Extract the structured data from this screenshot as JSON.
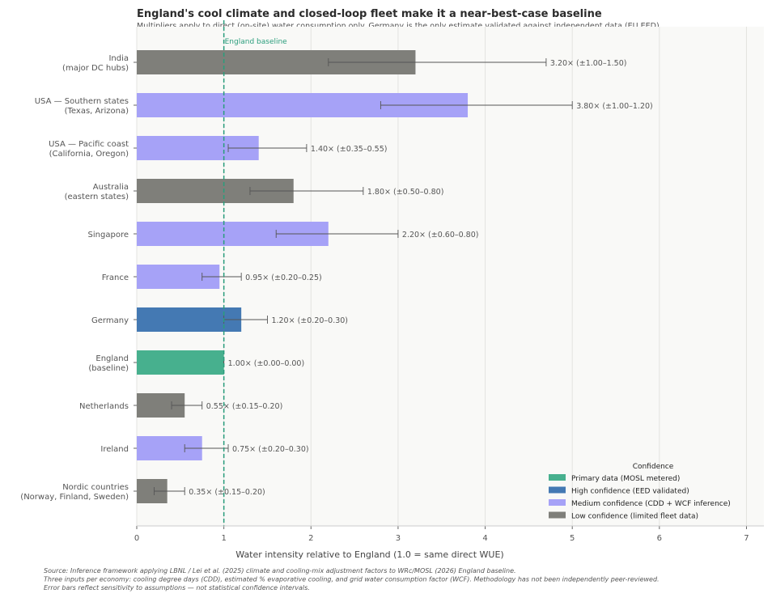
{
  "chart_data": {
    "type": "bar",
    "orientation": "horizontal",
    "title": "England's cool climate and closed-loop fleet make it a near-best-case baseline",
    "subtitle": "Multipliers apply to direct (on-site) water consumption only. Germany is the only estimate validated against independent data (EU EED).",
    "xlabel": "Water intensity relative to England (1.0 = same direct WUE)",
    "xlim": [
      0,
      7.2
    ],
    "xticks": [
      0,
      1,
      2,
      3,
      4,
      5,
      6,
      7
    ],
    "grid": "vertical",
    "reference_line": {
      "value": 1.0,
      "label": "England baseline",
      "color": "#2a9d7c"
    },
    "categories": [
      [
        "India",
        "(major DC hubs)"
      ],
      [
        "USA — Southern states",
        "(Texas, Arizona)"
      ],
      [
        "USA — Pacific coast",
        "(California, Oregon)"
      ],
      [
        "Australia",
        "(eastern states)"
      ],
      [
        "Singapore"
      ],
      [
        "France"
      ],
      [
        "Germany"
      ],
      [
        "England",
        "(baseline)"
      ],
      [
        "Netherlands"
      ],
      [
        "Ireland"
      ],
      [
        "Nordic countries",
        "(Norway, Finland, Sweden)"
      ]
    ],
    "values": [
      3.2,
      3.8,
      1.4,
      1.8,
      2.2,
      0.95,
      1.2,
      1.0,
      0.55,
      0.75,
      0.35
    ],
    "err_low": [
      1.0,
      1.0,
      0.35,
      0.5,
      0.6,
      0.2,
      0.2,
      0.0,
      0.15,
      0.2,
      0.15
    ],
    "err_high": [
      1.5,
      1.2,
      0.55,
      0.8,
      0.8,
      0.25,
      0.3,
      0.0,
      0.2,
      0.3,
      0.2
    ],
    "labels": [
      "3.20×  (±1.00–1.50)",
      "3.80×  (±1.00–1.20)",
      "1.40×  (±0.35–0.55)",
      "1.80×  (±0.50–0.80)",
      "2.20×  (±0.60–0.80)",
      "0.95×  (±0.20–0.25)",
      "1.20×  (±0.20–0.30)",
      "1.00×  (±0.00–0.00)",
      "0.55×  (±0.15–0.20)",
      "0.75×  (±0.20–0.30)",
      "0.35×  (±0.15–0.20)"
    ],
    "confidence": [
      "low",
      "medium",
      "medium",
      "low",
      "medium",
      "medium",
      "high",
      "primary",
      "low",
      "medium",
      "low"
    ],
    "legend": {
      "title": "Confidence",
      "placement": "bottom-right",
      "entries": [
        {
          "key": "primary",
          "label": "Primary data (MOSL metered)",
          "color": "#47b08e"
        },
        {
          "key": "high",
          "label": "High confidence (EED validated)",
          "color": "#4479b3"
        },
        {
          "key": "medium",
          "label": "Medium confidence (CDD + WCF inference)",
          "color": "#a6a2f7"
        },
        {
          "key": "low",
          "label": "Low confidence (limited fleet data)",
          "color": "#7f7f7a"
        }
      ]
    }
  },
  "footer": [
    "Source: Inference framework applying LBNL / Lei et al. (2025) climate and cooling-mix adjustment factors to WRc/MOSL (2026) England baseline.",
    "Three inputs per economy: cooling degree days (CDD), estimated % evaporative cooling, and grid water consumption factor (WCF). Methodology has not been independently peer-reviewed.",
    "Error bars reflect sensitivity to assumptions — not statistical confidence intervals."
  ]
}
